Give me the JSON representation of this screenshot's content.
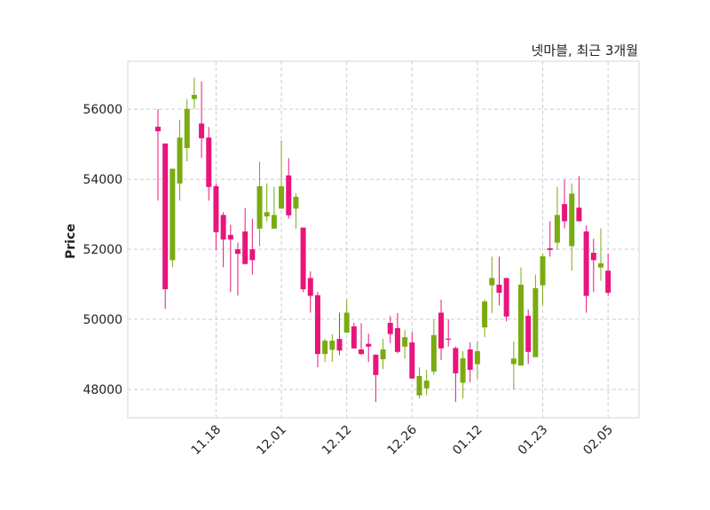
{
  "chart_data": {
    "type": "candlestick",
    "title": "넷마블, 최근 3개월",
    "xlabel": "",
    "ylabel": "Price",
    "ylim": [
      47190,
      57370
    ],
    "yticks": [
      48000,
      50000,
      52000,
      54000,
      56000
    ],
    "xtick_labels": [
      "11.18",
      "12.01",
      "12.12",
      "12.26",
      "01.12",
      "01.23",
      "02.05"
    ],
    "xtick_candle_numbers": [
      9,
      18,
      27,
      36,
      45,
      54,
      63
    ],
    "grid": true,
    "colors": {
      "up": "#7aab12",
      "down": "#e8157c",
      "grid": "#cccccc",
      "frame": "#dddddd"
    },
    "ohlc_fields": [
      "open",
      "high",
      "low",
      "close"
    ],
    "candles": [
      [
        55500,
        56000,
        53390,
        55370
      ],
      [
        55020,
        55020,
        50300,
        50860
      ],
      [
        51690,
        54300,
        51490,
        54300
      ],
      [
        53880,
        55700,
        53390,
        55190
      ],
      [
        54890,
        56290,
        54510,
        56010
      ],
      [
        56290,
        56900,
        56010,
        56410
      ],
      [
        55590,
        56790,
        54610,
        55170
      ],
      [
        55190,
        55490,
        53390,
        53780
      ],
      [
        53800,
        53880,
        51980,
        52490
      ],
      [
        52980,
        53060,
        51490,
        52280
      ],
      [
        52410,
        52700,
        50780,
        52280
      ],
      [
        52000,
        52190,
        50680,
        51870
      ],
      [
        52510,
        53180,
        51570,
        51580
      ],
      [
        52000,
        52870,
        51280,
        51690
      ],
      [
        52590,
        54500,
        52090,
        53800
      ],
      [
        52940,
        53880,
        52800,
        53060
      ],
      [
        52590,
        53780,
        52590,
        52980
      ],
      [
        53160,
        55110,
        53160,
        53800
      ],
      [
        54110,
        54600,
        52870,
        52970
      ],
      [
        53160,
        53590,
        52590,
        53500
      ],
      [
        52620,
        52620,
        50780,
        50860
      ],
      [
        51180,
        51370,
        50190,
        50670
      ],
      [
        50690,
        50780,
        48630,
        49010
      ],
      [
        49010,
        49450,
        48780,
        49390
      ],
      [
        49130,
        49580,
        48780,
        49390
      ],
      [
        49440,
        50190,
        48980,
        49110
      ],
      [
        49620,
        50560,
        49620,
        50190
      ],
      [
        49800,
        49900,
        49170,
        49170
      ],
      [
        49140,
        49890,
        48980,
        49010
      ],
      [
        49300,
        49590,
        48780,
        49220
      ],
      [
        48990,
        49000,
        47640,
        48410
      ],
      [
        48860,
        49440,
        48580,
        49140
      ],
      [
        49900,
        50090,
        49320,
        49580
      ],
      [
        49750,
        50180,
        49030,
        49070
      ],
      [
        49220,
        49690,
        48880,
        49490
      ],
      [
        49340,
        49640,
        48310,
        48310
      ],
      [
        47830,
        48630,
        47740,
        48380
      ],
      [
        48030,
        48560,
        47830,
        48250
      ],
      [
        48510,
        50000,
        48420,
        49550
      ],
      [
        50190,
        50560,
        48840,
        49170
      ],
      [
        49450,
        50000,
        49220,
        49420
      ],
      [
        49180,
        49220,
        47640,
        48460
      ],
      [
        48190,
        49090,
        47740,
        48890
      ],
      [
        49140,
        49340,
        48200,
        48560
      ],
      [
        48720,
        49370,
        48300,
        49090
      ],
      [
        49770,
        50570,
        49490,
        50510
      ],
      [
        50970,
        51790,
        50180,
        51180
      ],
      [
        50990,
        51790,
        50400,
        50760
      ],
      [
        51180,
        51180,
        49940,
        50080
      ],
      [
        48720,
        49370,
        48000,
        48880
      ],
      [
        48680,
        51480,
        48680,
        50990
      ],
      [
        50100,
        50280,
        48730,
        49070
      ],
      [
        48920,
        51280,
        48920,
        50890
      ],
      [
        50970,
        51880,
        50400,
        51800
      ],
      [
        52030,
        52800,
        51790,
        51980
      ],
      [
        52190,
        53780,
        51980,
        52980
      ],
      [
        53290,
        53990,
        52600,
        52800
      ],
      [
        52090,
        53880,
        51390,
        53590
      ],
      [
        53190,
        54090,
        52800,
        52800
      ],
      [
        52510,
        52680,
        50190,
        50670
      ],
      [
        51900,
        52300,
        50780,
        51690
      ],
      [
        51480,
        52600,
        51100,
        51600
      ],
      [
        51390,
        51880,
        50670,
        50760
      ]
    ]
  }
}
